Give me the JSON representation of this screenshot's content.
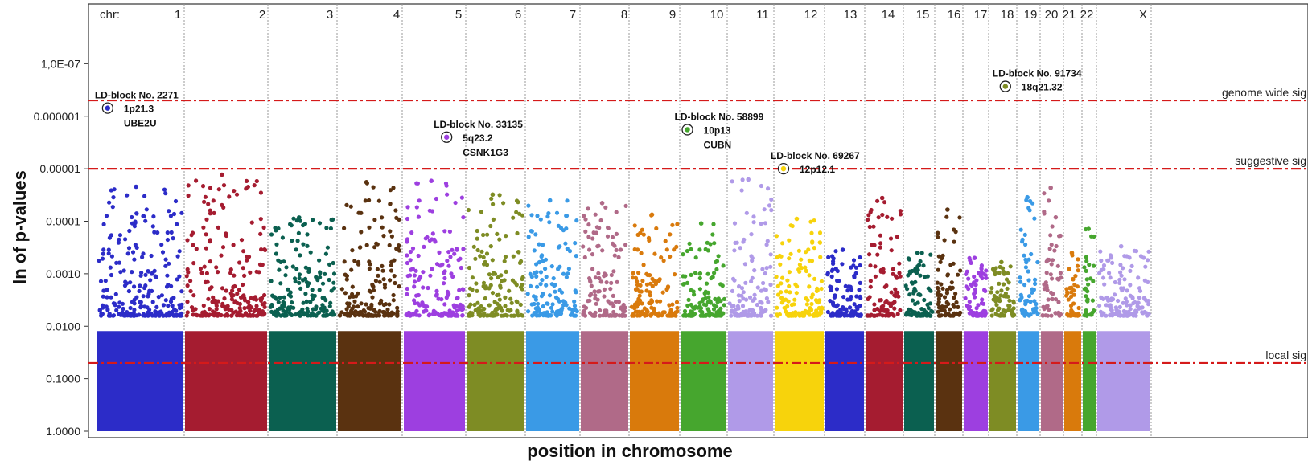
{
  "chart_data": {
    "type": "scatter",
    "subtype": "manhattan",
    "ylabel": "ln of p-values",
    "xlabel": "position in chromosome",
    "y_scale": "log",
    "y_reversed": true,
    "y_ticks": [
      "1,0E-07",
      "0.000001",
      "0.00001",
      "0.0001",
      "0.0010",
      "0.0100",
      "0.1000",
      "1.0000"
    ],
    "y_tick_values": [
      1e-07,
      1e-06,
      1e-05,
      0.0001,
      0.001,
      0.01,
      0.1,
      1
    ],
    "ylim": [
      1.0,
      1e-08
    ],
    "chr_prefix": "chr:",
    "chromosomes": [
      {
        "label": "1",
        "color": "#2c2cc8",
        "top_p": 2.2e-05
      },
      {
        "label": "2",
        "color": "#a51c30",
        "top_p": 1.3e-05
      },
      {
        "label": "3",
        "color": "#0b6050",
        "top_p": 8.5e-05
      },
      {
        "label": "4",
        "color": "#5a3210",
        "top_p": 1.8e-05
      },
      {
        "label": "5",
        "color": "#9d3fe0",
        "top_p": 1.7e-05
      },
      {
        "label": "6",
        "color": "#7e8c24",
        "top_p": 3.1e-05
      },
      {
        "label": "7",
        "color": "#3a9ae6",
        "top_p": 4e-05
      },
      {
        "label": "8",
        "color": "#b06a88",
        "top_p": 4.5e-05
      },
      {
        "label": "9",
        "color": "#d97a0c",
        "top_p": 7.5e-05
      },
      {
        "label": "10",
        "color": "#46a62e",
        "top_p": 0.00011
      },
      {
        "label": "11",
        "color": "#b09ae8",
        "top_p": 1.6e-05
      },
      {
        "label": "12",
        "color": "#f7d30c",
        "top_p": 9e-05
      },
      {
        "label": "13",
        "color": "#2c2cc8",
        "top_p": 0.00035
      },
      {
        "label": "14",
        "color": "#a51c30",
        "top_p": 3.6e-05
      },
      {
        "label": "15",
        "color": "#0b6050",
        "top_p": 0.0004
      },
      {
        "label": "16",
        "color": "#5a3210",
        "top_p": 6e-05
      },
      {
        "label": "17",
        "color": "#9d3fe0",
        "top_p": 0.0005
      },
      {
        "label": "18",
        "color": "#7e8c24",
        "top_p": 0.0006
      },
      {
        "label": "19",
        "color": "#3a9ae6",
        "top_p": 3.5e-05
      },
      {
        "label": "20",
        "color": "#b06a88",
        "top_p": 2.3e-05
      },
      {
        "label": "21",
        "color": "#d97a0c",
        "top_p": 0.0004
      },
      {
        "label": "22",
        "color": "#46a62e",
        "top_p": 0.00014
      },
      {
        "label": "X",
        "color": "#b09ae8",
        "top_p": 0.0003
      }
    ],
    "thresholds": [
      {
        "name": "genome wide sig",
        "p": 5e-07
      },
      {
        "name": "suggestive sig",
        "p": 1e-05
      },
      {
        "name": "local sig",
        "p": 0.05
      }
    ],
    "highlights": [
      {
        "chr": "1",
        "pos": 0.12,
        "p": 7e-07,
        "lines": [
          "LD-block No. 2271",
          "1p21.3",
          "UBE2U"
        ],
        "color": "#2c2cc8"
      },
      {
        "chr": "5",
        "pos": 0.7,
        "p": 2.5e-06,
        "lines": [
          "LD-block No. 33135",
          "5q23.2",
          "CSNK1G3"
        ],
        "color": "#9d3fe0"
      },
      {
        "chr": "10",
        "pos": 0.15,
        "p": 1.8e-06,
        "lines": [
          "LD-block No. 58899",
          "10p13",
          "CUBN"
        ],
        "color": "#46a62e"
      },
      {
        "chr": "12",
        "pos": 0.18,
        "p": 1e-05,
        "lines": [
          "LD-block No. 69267",
          "12p12.1"
        ],
        "color": "#f7d30c"
      },
      {
        "chr": "18",
        "pos": 0.6,
        "p": 2.7e-07,
        "lines": [
          "LD-block No. 91734",
          "18q21.32"
        ],
        "color": "#7e8c24"
      }
    ]
  }
}
